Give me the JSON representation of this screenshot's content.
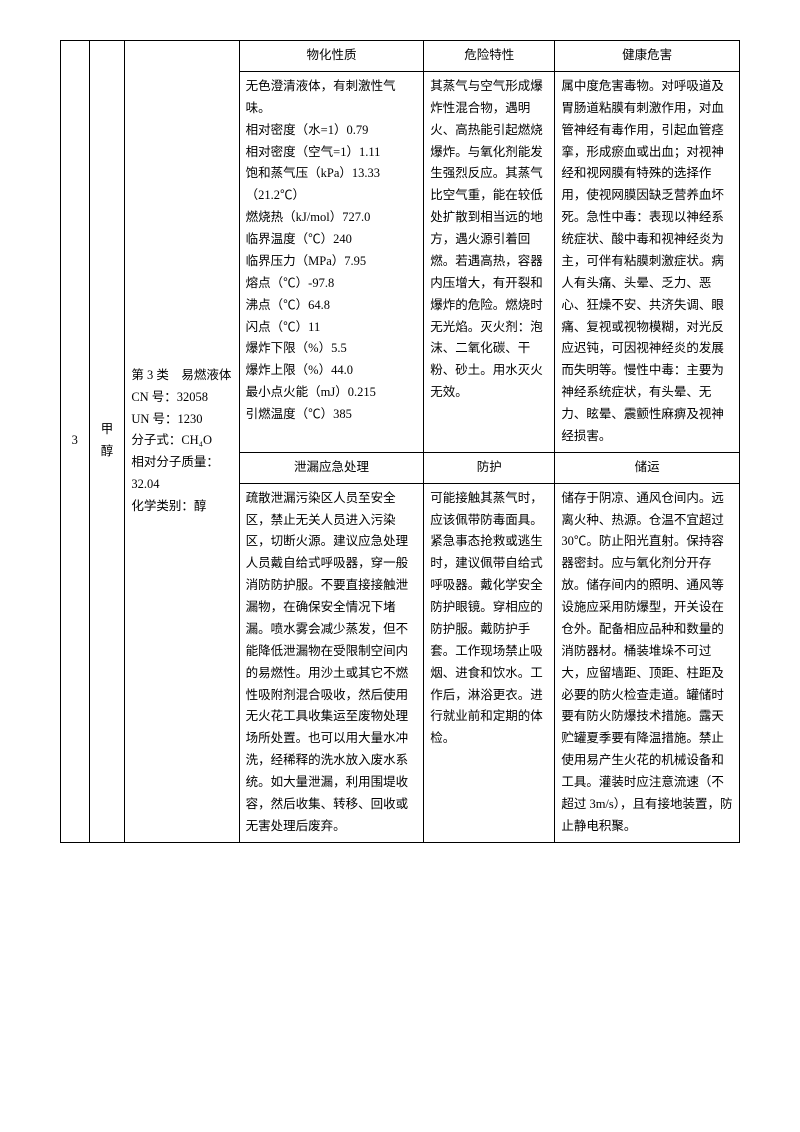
{
  "row_number": "3",
  "substance_name": "甲醇",
  "meta_text": "第 3 类　易燃液体\nCN 号：32058\nUN 号：1230\n分子式：CH₄O\n相对分子质量：32.04\n化学类别：醇",
  "headers_top": {
    "phys": "物化性质",
    "hazard": "危险特性",
    "health": "健康危害"
  },
  "cells_top": {
    "phys": "无色澄清液体，有刺激性气味。\n相对密度（水=1）0.79\n相对密度（空气=1）1.11\n饱和蒸气压（kPa）13.33（21.2℃）\n燃烧热（kJ/mol）727.0\n临界温度（℃）240\n临界压力（MPa）7.95\n熔点（℃）-97.8\n沸点（℃）64.8\n闪点（℃）11\n爆炸下限（%）5.5\n爆炸上限（%）44.0\n最小点火能（mJ）0.215\n引燃温度（℃）385",
    "hazard": "其蒸气与空气形成爆炸性混合物，遇明火、高热能引起燃烧爆炸。与氧化剂能发生强烈反应。其蒸气比空气重，能在较低处扩散到相当远的地方，遇火源引着回燃。若遇高热，容器内压增大，有开裂和爆炸的危险。燃烧时无光焰。灭火剂：泡沫、二氧化碳、干粉、砂土。用水灭火无效。",
    "health": "属中度危害毒物。对呼吸道及胃肠道粘膜有刺激作用，对血管神经有毒作用，引起血管痉挛，形成瘀血或出血；对视神经和视网膜有特殊的选择作用，使视网膜因缺乏营养血坏死。急性中毒：表现以神经系统症状、酸中毒和视神经炎为主，可伴有粘膜刺激症状。病人有头痛、头晕、乏力、恶心、狂燥不安、共济失调、眼痛、复视或视物模糊，对光反应迟钝，可因视神经炎的发展而失明等。慢性中毒：主要为神经系统症状，有头晕、无力、眩晕、震颤性麻痹及视神经损害。"
  },
  "headers_bottom": {
    "leak": "泄漏应急处理",
    "protect": "防护",
    "storage": "储运"
  },
  "cells_bottom": {
    "leak": "疏散泄漏污染区人员至安全区，禁止无关人员进入污染区，切断火源。建议应急处理人员戴自给式呼吸器，穿一般消防防护服。不要直接接触泄漏物，在确保安全情况下堵漏。喷水雾会减少蒸发，但不能降低泄漏物在受限制空间内的易燃性。用沙土或其它不燃性吸附剂混合吸收，然后使用无火花工具收集运至废物处理场所处置。也可以用大量水冲洗，经稀释的洗水放入废水系统。如大量泄漏，利用围堤收容，然后收集、转移、回收或无害处理后废弃。",
    "protect": "可能接触其蒸气时，应该佩带防毒面具。紧急事态抢救或逃生时，建议佩带自给式呼吸器。戴化学安全防护眼镜。穿相应的防护服。戴防护手套。工作现场禁止吸烟、进食和饮水。工作后，淋浴更衣。进行就业前和定期的体检。",
    "storage": "储存于阴凉、通风仓间内。远离火种、热源。仓温不宜超过 30℃。防止阳光直射。保持容器密封。应与氧化剂分开存放。储存间内的照明、通风等设施应采用防爆型，开关设在仓外。配备相应品种和数量的消防器材。桶装堆垛不可过大，应留墙距、顶距、柱距及必要的防火检查走道。罐储时要有防火防爆技术措施。露天贮罐夏季要有降温措施。禁止使用易产生火花的机械设备和工具。灌装时应注意流速（不超过 3m/s），且有接地装置，防止静电积聚。"
  }
}
